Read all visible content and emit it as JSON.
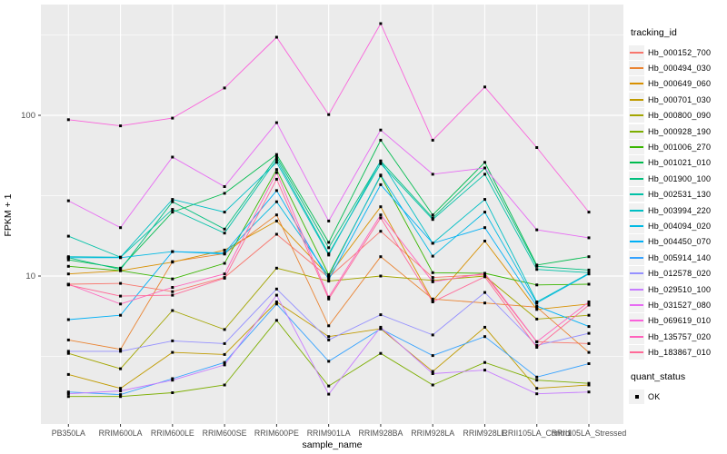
{
  "chart_data": {
    "type": "line",
    "xlabel": "sample_name",
    "ylabel": "FPKM + 1",
    "y_scale": "log10",
    "ylim": [
      1.2,
      489
    ],
    "y_ticks": [
      {
        "value": 10,
        "label": "10"
      },
      {
        "value": 100,
        "label": "100"
      }
    ],
    "y_minor_ticks": [
      3.162,
      31.62,
      316.2
    ],
    "grid": true,
    "panel_bg": "#EBEBEB",
    "grid_color": "#FFFFFF",
    "marker": {
      "shape": "square",
      "color": "#000000",
      "size": 3
    },
    "categories": [
      "PB350LA",
      "RRIM600LA",
      "RRIM600LE",
      "RRIM600SE",
      "RRIM600PE",
      "RRIM901LA",
      "RRIM928BA",
      "RRIM928LA",
      "RRIM928LE",
      "RRII105LA_Control",
      "RRII105LA_Stressed"
    ],
    "legend": {
      "title": "tracking_id",
      "position": "right"
    },
    "legend2": {
      "title": "quant_status",
      "items": [
        {
          "label": "OK",
          "marker": "black-square"
        }
      ]
    },
    "series": [
      {
        "name": "Hb_000152_700",
        "color": "#F8766D",
        "values": [
          8.9,
          9.0,
          8.0,
          9.8,
          18.2,
          9.8,
          19.0,
          9.8,
          10.2,
          3.9,
          3.8
        ]
      },
      {
        "name": "Hb_000494_030",
        "color": "#EA8331",
        "values": [
          4.0,
          3.5,
          12.3,
          13.8,
          24.0,
          4.9,
          13.2,
          7.2,
          6.8,
          6.4,
          3.35
        ]
      },
      {
        "name": "Hb_000649_060",
        "color": "#D89000",
        "values": [
          10.3,
          10.8,
          12.2,
          14.5,
          22.0,
          10.0,
          27.0,
          7.0,
          16.5,
          6.2,
          6.7
        ]
      },
      {
        "name": "Hb_000701_030",
        "color": "#C09B00",
        "values": [
          2.44,
          2.0,
          3.35,
          3.25,
          6.9,
          4.2,
          4.7,
          2.55,
          4.8,
          2.0,
          2.1
        ]
      },
      {
        "name": "Hb_000800_090",
        "color": "#A3A500",
        "values": [
          3.3,
          2.65,
          6.1,
          4.65,
          11.2,
          9.3,
          10.0,
          9.4,
          10.0,
          5.4,
          5.7
        ]
      },
      {
        "name": "Hb_000928_190",
        "color": "#7CAE00",
        "values": [
          1.78,
          1.78,
          1.88,
          2.1,
          5.3,
          2.07,
          3.3,
          2.1,
          2.9,
          2.25,
          2.15
        ]
      },
      {
        "name": "Hb_001006_270",
        "color": "#39B600",
        "values": [
          11.5,
          10.8,
          9.6,
          12.0,
          46.0,
          10.2,
          42.0,
          10.5,
          10.4,
          8.8,
          8.9
        ]
      },
      {
        "name": "Hb_001021_010",
        "color": "#00BB4E",
        "values": [
          12.6,
          11.2,
          25.0,
          32.7,
          57.0,
          16.2,
          70.0,
          24.0,
          51.0,
          11.7,
          13.2
        ]
      },
      {
        "name": "Hb_001900_100",
        "color": "#00BF7D",
        "values": [
          13.0,
          11.0,
          29.0,
          19.6,
          55.0,
          15.0,
          52.0,
          23.0,
          47.0,
          11.5,
          10.9
        ]
      },
      {
        "name": "Hb_002531_130",
        "color": "#00C1A7",
        "values": [
          17.7,
          13.1,
          26.0,
          18.5,
          53.0,
          13.8,
          50.0,
          22.5,
          43.0,
          11.0,
          10.5
        ]
      },
      {
        "name": "Hb_003994_220",
        "color": "#00BFC4",
        "values": [
          13.2,
          13.1,
          30.0,
          25.0,
          51.0,
          13.5,
          52.0,
          16.0,
          30.0,
          6.9,
          10.4
        ]
      },
      {
        "name": "Hb_004094_020",
        "color": "#00B9E3",
        "values": [
          13.0,
          13.0,
          14.2,
          13.7,
          29.0,
          10.0,
          42.5,
          13.3,
          25.0,
          6.8,
          10.3
        ]
      },
      {
        "name": "Hb_004450_070",
        "color": "#00B0F6",
        "values": [
          5.36,
          5.7,
          14.2,
          13.9,
          34.0,
          9.5,
          37.0,
          16.0,
          20.0,
          6.5,
          4.85
        ]
      },
      {
        "name": "Hb_005914_140",
        "color": "#35A2FF",
        "values": [
          1.9,
          1.83,
          2.3,
          2.9,
          6.7,
          2.95,
          4.7,
          3.2,
          4.2,
          2.35,
          2.85
        ]
      },
      {
        "name": "Hb_012578_020",
        "color": "#9590FF",
        "values": [
          3.4,
          3.4,
          3.95,
          3.8,
          8.3,
          4.0,
          5.75,
          4.3,
          7.9,
          3.7,
          4.4
        ]
      },
      {
        "name": "Hb_029510_100",
        "color": "#C77CFF",
        "values": [
          1.85,
          1.93,
          2.25,
          2.8,
          7.6,
          1.84,
          4.8,
          2.47,
          2.6,
          1.85,
          1.9
        ]
      },
      {
        "name": "Hb_031527_080",
        "color": "#E76BF3",
        "values": [
          29.4,
          20.0,
          55.0,
          36.0,
          90.0,
          22.0,
          81.0,
          43.0,
          47.0,
          19.4,
          17.3
        ]
      },
      {
        "name": "Hb_069619_010",
        "color": "#FA62DB",
        "values": [
          94.0,
          86.0,
          96.0,
          148.0,
          306.0,
          101.0,
          372.0,
          70.0,
          150.0,
          63.0,
          25.0
        ]
      },
      {
        "name": "Hb_135757_020",
        "color": "#FF62BC",
        "values": [
          8.9,
          6.7,
          8.5,
          10.3,
          44.0,
          7.4,
          24.0,
          9.2,
          10.4,
          3.9,
          6.9
        ]
      },
      {
        "name": "Hb_183867_010",
        "color": "#FF6A98",
        "values": [
          8.8,
          7.5,
          7.6,
          9.7,
          40.0,
          7.2,
          23.0,
          6.9,
          9.9,
          3.6,
          6.6
        ]
      }
    ]
  }
}
